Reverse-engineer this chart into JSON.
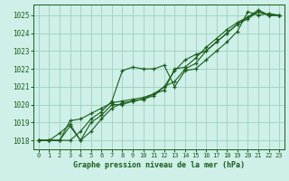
{
  "title": "Graphe pression niveau de la mer (hPa)",
  "bg_color": "#cef0e8",
  "grid_color": "#9ecfbf",
  "line_color": "#1a5c1a",
  "marker_color": "#1a5c1a",
  "xlim": [
    -0.5,
    23.5
  ],
  "ylim": [
    1017.5,
    1025.6
  ],
  "yticks": [
    1018,
    1019,
    1020,
    1021,
    1022,
    1023,
    1024,
    1025
  ],
  "xticks": [
    0,
    1,
    2,
    3,
    4,
    5,
    6,
    7,
    8,
    9,
    10,
    11,
    12,
    13,
    14,
    15,
    16,
    17,
    18,
    19,
    20,
    21,
    22,
    23
  ],
  "series": [
    [
      1018.0,
      1018.0,
      1018.0,
      1018.0,
      1018.5,
      1019.2,
      1019.6,
      1020.2,
      1021.9,
      1022.1,
      1022.0,
      1022.0,
      1022.2,
      1021.0,
      1021.9,
      1022.0,
      1022.5,
      1023.0,
      1023.5,
      1024.1,
      1025.2,
      1025.0,
      1025.1,
      1025.0
    ],
    [
      1018.0,
      1018.0,
      1018.0,
      1018.8,
      1018.0,
      1018.5,
      1019.2,
      1019.8,
      1020.1,
      1020.2,
      1020.3,
      1020.5,
      1021.0,
      1021.9,
      1022.5,
      1022.8,
      1023.0,
      1023.5,
      1024.0,
      1024.5,
      1024.9,
      1025.2,
      1025.0,
      1025.0
    ],
    [
      1018.0,
      1018.0,
      1018.0,
      1019.1,
      1019.2,
      1019.5,
      1019.8,
      1020.1,
      1020.2,
      1020.3,
      1020.4,
      1020.6,
      1021.0,
      1021.3,
      1022.0,
      1022.3,
      1023.0,
      1023.5,
      1024.0,
      1024.5,
      1024.8,
      1025.2,
      1025.0,
      1025.0
    ],
    [
      1018.0,
      1018.0,
      1018.4,
      1018.9,
      1018.0,
      1019.0,
      1019.4,
      1020.0,
      1020.0,
      1020.2,
      1020.3,
      1020.6,
      1020.8,
      1022.0,
      1022.1,
      1022.6,
      1023.2,
      1023.7,
      1024.2,
      1024.6,
      1024.9,
      1025.3,
      1025.0,
      1025.0
    ]
  ]
}
